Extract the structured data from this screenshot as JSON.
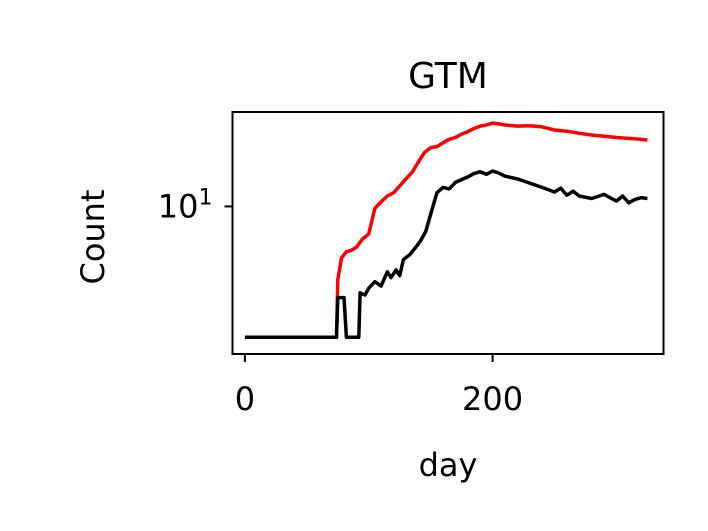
{
  "chart_data": {
    "type": "line",
    "title": "GTM",
    "xlabel": "day",
    "ylabel": "Count",
    "xlim": [
      -10,
      338
    ],
    "ylim": [
      2,
      28
    ],
    "yscale": "log",
    "grid": false,
    "xticks": [
      {
        "value": 0,
        "label": "0"
      },
      {
        "value": 200,
        "label": "200"
      }
    ],
    "yticks": [
      {
        "value": 10,
        "base": "10",
        "exp": "1"
      }
    ],
    "series": [
      {
        "color": "#ff0000",
        "points": [
          [
            0,
            2.4
          ],
          [
            74,
            2.4
          ],
          [
            75,
            4.5
          ],
          [
            78,
            5.7
          ],
          [
            82,
            6.1
          ],
          [
            86,
            6.2
          ],
          [
            90,
            6.4
          ],
          [
            95,
            7.0
          ],
          [
            100,
            7.4
          ],
          [
            105,
            9.8
          ],
          [
            110,
            10.5
          ],
          [
            115,
            11.2
          ],
          [
            120,
            11.6
          ],
          [
            125,
            12.5
          ],
          [
            130,
            13.5
          ],
          [
            135,
            14.5
          ],
          [
            140,
            16.2
          ],
          [
            145,
            18.0
          ],
          [
            150,
            19.0
          ],
          [
            155,
            19.2
          ],
          [
            160,
            20.0
          ],
          [
            165,
            20.8
          ],
          [
            170,
            21.2
          ],
          [
            175,
            22.0
          ],
          [
            180,
            22.6
          ],
          [
            185,
            23.4
          ],
          [
            190,
            24.0
          ],
          [
            195,
            24.3
          ],
          [
            200,
            24.8
          ],
          [
            205,
            24.6
          ],
          [
            210,
            24.3
          ],
          [
            220,
            24.0
          ],
          [
            230,
            24.1
          ],
          [
            240,
            23.8
          ],
          [
            250,
            23.0
          ],
          [
            260,
            22.7
          ],
          [
            270,
            22.2
          ],
          [
            280,
            21.8
          ],
          [
            290,
            21.5
          ],
          [
            300,
            21.2
          ],
          [
            310,
            21.0
          ],
          [
            320,
            20.8
          ],
          [
            325,
            20.6
          ]
        ]
      },
      {
        "color": "#000000",
        "points": [
          [
            0,
            2.4
          ],
          [
            74,
            2.4
          ],
          [
            75,
            3.7
          ],
          [
            80,
            3.7
          ],
          [
            82,
            2.4
          ],
          [
            92,
            2.4
          ],
          [
            93,
            3.9
          ],
          [
            97,
            3.8
          ],
          [
            100,
            4.1
          ],
          [
            105,
            4.4
          ],
          [
            110,
            4.2
          ],
          [
            115,
            4.9
          ],
          [
            118,
            4.6
          ],
          [
            122,
            5.0
          ],
          [
            125,
            4.7
          ],
          [
            128,
            5.6
          ],
          [
            133,
            5.9
          ],
          [
            138,
            6.4
          ],
          [
            142,
            6.9
          ],
          [
            146,
            7.6
          ],
          [
            150,
            9.2
          ],
          [
            155,
            11.6
          ],
          [
            160,
            12.3
          ],
          [
            165,
            12.1
          ],
          [
            170,
            13.0
          ],
          [
            175,
            13.4
          ],
          [
            180,
            13.8
          ],
          [
            185,
            14.3
          ],
          [
            190,
            14.6
          ],
          [
            195,
            14.2
          ],
          [
            200,
            14.7
          ],
          [
            205,
            14.4
          ],
          [
            210,
            13.9
          ],
          [
            220,
            13.5
          ],
          [
            230,
            12.9
          ],
          [
            240,
            12.3
          ],
          [
            250,
            11.7
          ],
          [
            255,
            12.2
          ],
          [
            260,
            11.3
          ],
          [
            265,
            11.8
          ],
          [
            270,
            11.2
          ],
          [
            280,
            10.9
          ],
          [
            290,
            11.4
          ],
          [
            300,
            10.6
          ],
          [
            305,
            11.2
          ],
          [
            310,
            10.4
          ],
          [
            315,
            10.8
          ],
          [
            320,
            11.0
          ],
          [
            325,
            10.9
          ]
        ]
      }
    ]
  }
}
